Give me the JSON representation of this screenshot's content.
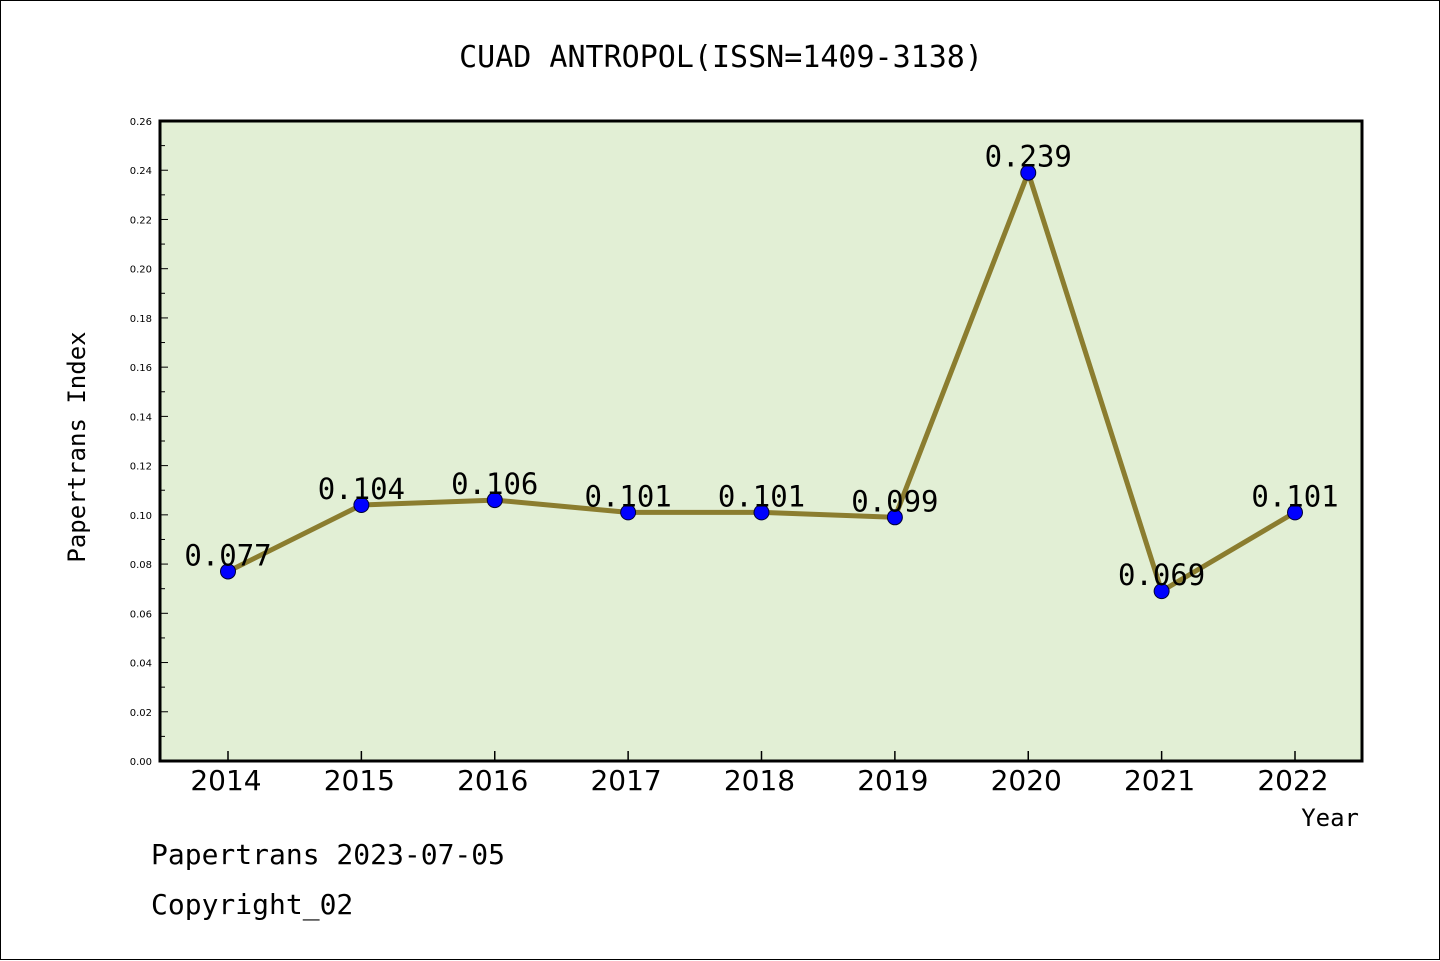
{
  "chart_data": {
    "type": "line",
    "title": "CUAD ANTROPOL(ISSN=1409-3138)",
    "xlabel": "Year",
    "ylabel": "Papertrans Index",
    "categories": [
      "2014",
      "2015",
      "2016",
      "2017",
      "2018",
      "2019",
      "2020",
      "2021",
      "2022"
    ],
    "series": [
      {
        "values": [
          0.077,
          0.104,
          0.106,
          0.101,
          0.101,
          0.099,
          0.239,
          0.069,
          0.101
        ]
      }
    ],
    "data_labels": [
      "0.077",
      "0.104",
      "0.106",
      "0.101",
      "0.101",
      "0.099",
      "0.239",
      "0.069",
      "0.101"
    ],
    "ylim": [
      0,
      0.26
    ],
    "yticks": [
      "0.00",
      "0.02",
      "0.04",
      "0.06",
      "0.08",
      "0.10",
      "0.12",
      "0.14",
      "0.16",
      "0.18",
      "0.20",
      "0.22",
      "0.24",
      "0.26"
    ],
    "grid": false,
    "colors": {
      "plot_background": "#e2efd5",
      "line": "#8b7d2f",
      "marker": "#0000ff"
    }
  },
  "footer": {
    "line1": "Papertrans 2023-07-05",
    "line2": "Copyright_02"
  }
}
